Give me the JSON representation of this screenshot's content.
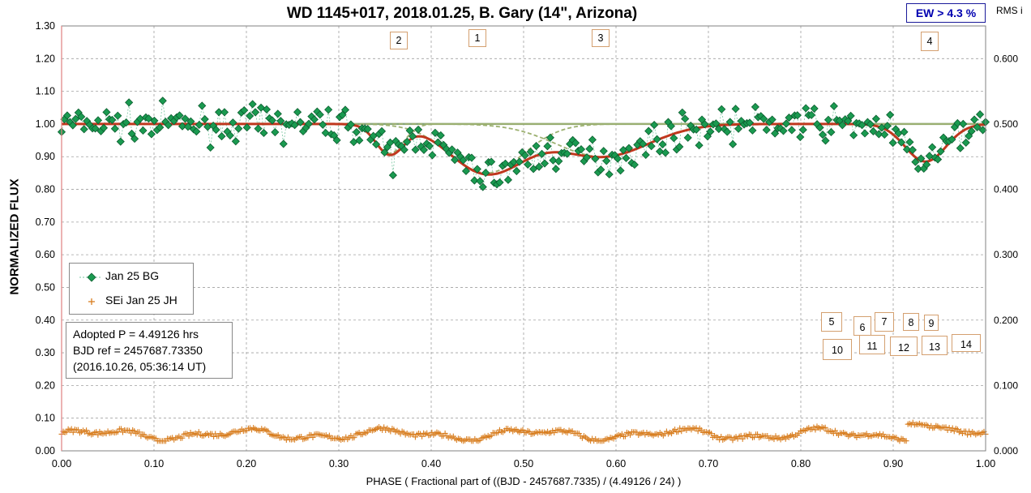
{
  "title": "WD 1145+017, 2018.01.25, B. Gary (14\", Arizona)",
  "ew_box": "EW >  4.3 %",
  "rms_label": "RMS i",
  "info_lines": [
    "Adopted P = 4.49126 hrs",
    "BJD ref = 2457687.73350",
    "(2016.10.26, 05:36:14 UT)"
  ],
  "annotations": [
    "2",
    "1",
    "3",
    "4",
    "5",
    "6",
    "7",
    "8",
    "9",
    "10",
    "11",
    "12",
    "13",
    "14"
  ],
  "colors": {
    "data": "#1a9a50",
    "connector": "#79c6a0",
    "model": "#c0381e",
    "dips": "#9cb070",
    "baseline": "#7fa070",
    "sei": "#d87e20",
    "ew": "#0000b0",
    "grid": "#a0a0a0"
  },
  "chart_data": {
    "type": "scatter",
    "title": "WD 1145+017, 2018.01.25, B. Gary (14\", Arizona)",
    "xlabel": "PHASE  ( Fractional part of ((BJD - 2457687.7335)  / (4.49126  / 24) )",
    "ylabel": "NORMALIZED  FLUX",
    "y2label": "RMS i",
    "xlim": [
      0,
      1
    ],
    "ylim": [
      0,
      1.3
    ],
    "y2lim": [
      0,
      0.65
    ],
    "x_ticks": [
      "0.00",
      "0.10",
      "0.20",
      "0.30",
      "0.40",
      "0.50",
      "0.60",
      "0.70",
      "0.80",
      "0.90",
      "1.00"
    ],
    "y_ticks": [
      "0.00",
      "0.10",
      "0.20",
      "0.30",
      "0.40",
      "0.50",
      "0.60",
      "0.70",
      "0.80",
      "0.90",
      "1.00",
      "1.10",
      "1.20",
      "1.30"
    ],
    "y2_ticks": [
      "0.000",
      "0.100",
      "0.200",
      "0.300",
      "0.400",
      "0.500",
      "0.600"
    ],
    "grid": true,
    "legend_position": "lower-left",
    "model_dips": [
      {
        "label": "1",
        "center": 0.46,
        "depth": 0.15,
        "width": 0.04
      },
      {
        "label": "2",
        "center": 0.355,
        "depth": 0.09,
        "width": 0.015
      },
      {
        "label": "3",
        "center": 0.585,
        "depth": 0.1,
        "width": 0.05
      },
      {
        "label": "4",
        "center": 0.935,
        "depth": 0.115,
        "width": 0.022
      }
    ],
    "series": [
      {
        "name": "Jan 25 BG",
        "kind": "flux",
        "noise": 0.035,
        "npoints": 330
      },
      {
        "name": "SEi Jan 25 JH",
        "kind": "rms",
        "base": 0.05,
        "npoints": 560,
        "burst_x": [
          0.915,
          0.97
        ],
        "burst_y": 0.085
      }
    ]
  }
}
